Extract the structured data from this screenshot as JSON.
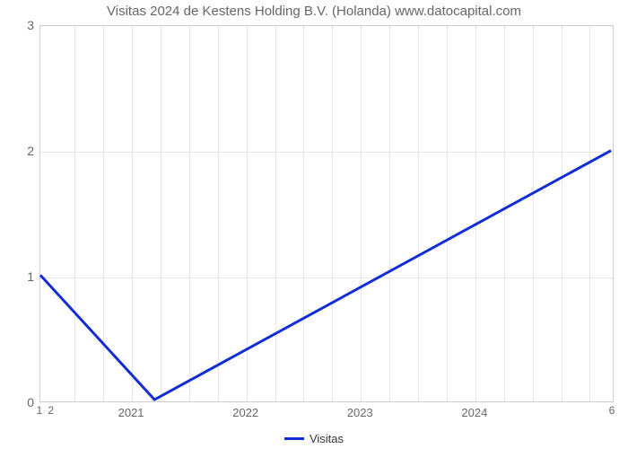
{
  "chart": {
    "type": "line",
    "title": "Visitas 2024 de Kestens Holding B.V. (Holanda) www.datocapital.com",
    "title_fontsize": 15,
    "title_color": "#666666",
    "background_color": "#ffffff",
    "grid_color": "#e5e5e5",
    "border_color": "#cccccc",
    "series": {
      "name": "Visitas",
      "color": "#122cd6",
      "line_width": 3,
      "x": [
        1,
        2,
        6
      ],
      "y": [
        1,
        0,
        2
      ]
    },
    "xlim": [
      1,
      6
    ],
    "ylim": [
      0,
      3
    ],
    "y_ticks": [
      0,
      1,
      2,
      3
    ],
    "x_major_labels": [
      "2021",
      "2022",
      "2023",
      "2024"
    ],
    "x_major_positions": [
      1.8,
      2.8,
      3.8,
      4.8
    ],
    "x_minor_labels": [
      "1",
      "2",
      "6"
    ],
    "x_minor_positions": [
      1,
      1.1,
      6
    ],
    "x_minor_grid_positions": [
      1.3,
      1.55,
      1.8,
      2.05,
      2.3,
      2.55,
      2.8,
      3.05,
      3.3,
      3.55,
      3.8,
      4.05,
      4.3,
      4.55,
      4.8,
      5.05,
      5.3,
      5.55,
      5.8
    ],
    "label_color": "#666666",
    "label_fontsize": 14,
    "legend_label": "Visitas"
  }
}
